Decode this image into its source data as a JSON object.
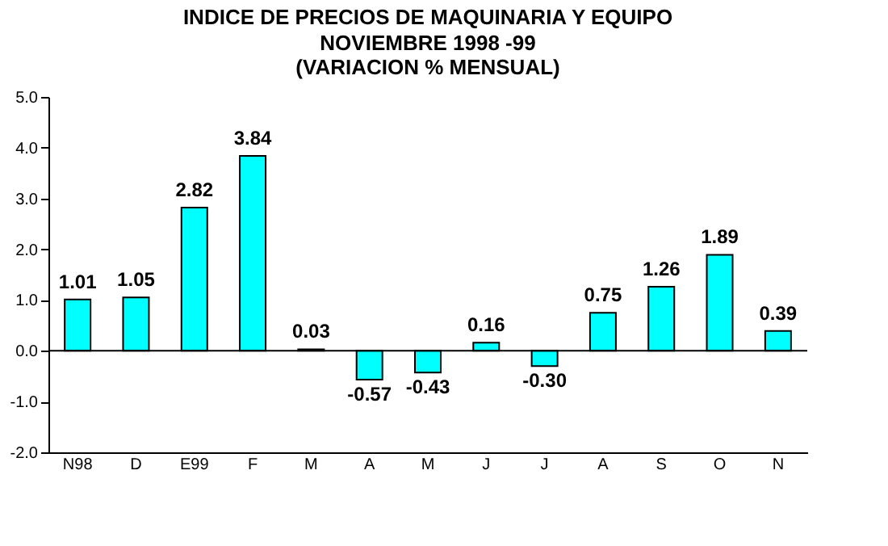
{
  "chart_data": {
    "type": "bar",
    "title": "INDICE DE PRECIOS DE MAQUINARIA Y EQUIPO",
    "subtitle": [
      "NOVIEMBRE 1998 -99",
      "(VARIACION % MENSUAL)"
    ],
    "categories": [
      "N98",
      "D",
      "E99",
      "F",
      "M",
      "A",
      "M",
      "J",
      "J",
      "A",
      "S",
      "O",
      "N"
    ],
    "values": [
      1.01,
      1.05,
      2.82,
      3.84,
      0.03,
      -0.57,
      -0.43,
      0.16,
      -0.3,
      0.75,
      1.26,
      1.89,
      0.39
    ],
    "color": "#00ffff",
    "data_labels": true,
    "value_labels": [
      "1.01",
      "1.05",
      "2.82",
      "3.84",
      "0.03",
      "-0.57",
      "-0.43",
      "0.16",
      "-0.30",
      "0.75",
      "1.26",
      "1.89",
      "0.39"
    ],
    "ylim": [
      -2,
      5
    ],
    "yticks": [
      {
        "value": -2,
        "label": "-2.0"
      },
      {
        "value": -1,
        "label": "-1.0"
      },
      {
        "value": 0,
        "label": "0.0"
      },
      {
        "value": 1,
        "label": "1.0"
      },
      {
        "value": 2,
        "label": "2.0"
      },
      {
        "value": 3,
        "label": "3.0"
      },
      {
        "value": 4,
        "label": "4.0"
      },
      {
        "value": 5,
        "label": "5.0"
      }
    ],
    "ref_lines": [
      {
        "axis": "y",
        "value": 0,
        "color": "#000000"
      }
    ],
    "grid": false
  }
}
